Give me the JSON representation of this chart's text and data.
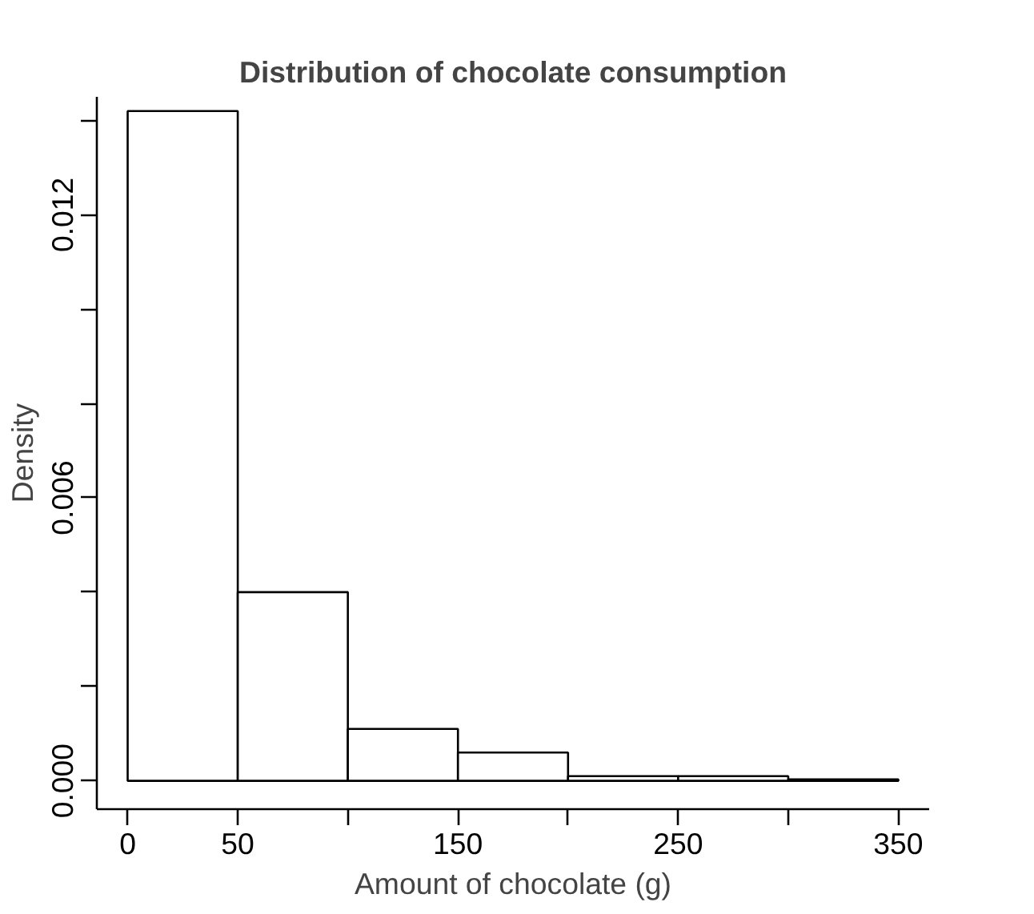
{
  "chart_data": {
    "type": "histogram",
    "title": "Distribution of chocolate consumption",
    "xlabel": "Amount of chocolate (g)",
    "ylabel": "Density",
    "bins": [
      0,
      50,
      100,
      150,
      200,
      250,
      300,
      350
    ],
    "values": [
      0.0142,
      0.004,
      0.0011,
      0.0006,
      0.0001,
      0.0001,
      3e-05
    ],
    "color": "#ffffff",
    "xlim": [
      -14,
      364
    ],
    "ylim": [
      -0.0006,
      0.0145
    ],
    "xticks": [
      0,
      50,
      {
        "value": 100,
        "label": null
      },
      150,
      {
        "value": 200,
        "label": null
      },
      250,
      {
        "value": 300,
        "label": null
      },
      350
    ],
    "yticks": [
      {
        "value": 0,
        "label": "0.000"
      },
      {
        "value": 0.002,
        "label": null
      },
      {
        "value": 0.004,
        "label": null
      },
      {
        "value": 0.006,
        "label": "0.006"
      },
      {
        "value": 0.008,
        "label": null
      },
      {
        "value": 0.01,
        "label": null
      },
      {
        "value": 0.012,
        "label": "0.012"
      },
      {
        "value": 0.014,
        "label": null
      }
    ],
    "grid": false
  }
}
